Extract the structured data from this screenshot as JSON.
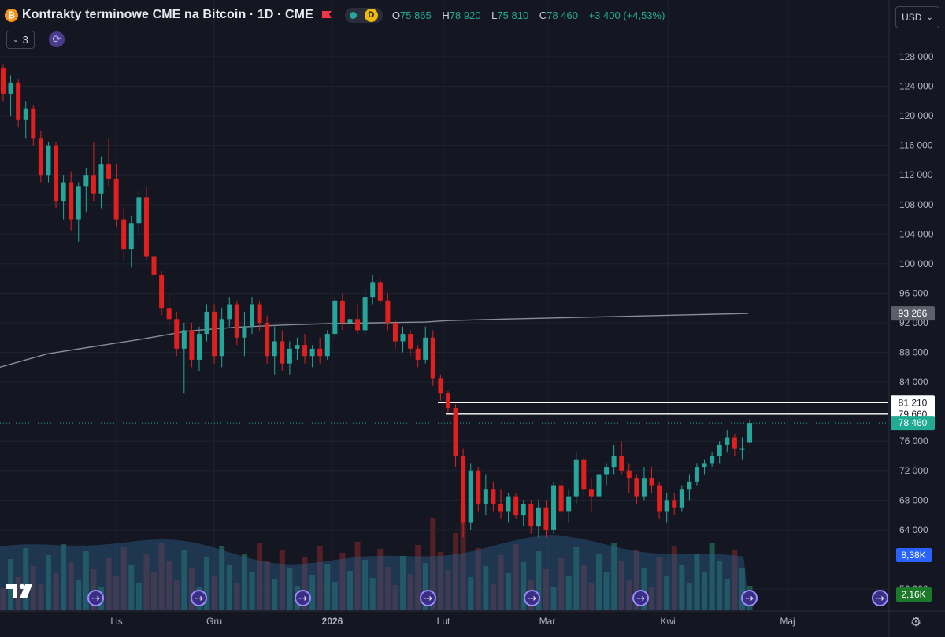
{
  "legend": {
    "coin_icon": "bitcoin-icon",
    "coin_symbol": "₿",
    "title": "Kontrakty terminowe CME na Bitcoin · 1D · CME",
    "status_letter": "D",
    "open_label": "O",
    "open": "75 865",
    "high_label": "H",
    "high": "78 920",
    "low_label": "L",
    "low": "75 810",
    "close_label": "C",
    "close": "78 460",
    "change": "+3 400 (+4,53%)"
  },
  "toolbar": {
    "indicators_count": "3",
    "currency": "USD"
  },
  "colors": {
    "up": "#26a69a",
    "down": "#e0201f",
    "background": "#141722",
    "grid": "#1f2330",
    "ma": "#8a8d96",
    "volume": "#2a5d8a"
  },
  "chart_data": {
    "type": "candlestick",
    "title": "Kontrakty terminowe CME na Bitcoin",
    "interval": "1D",
    "exchange": "CME",
    "x_tick_labels": [
      "Lis",
      "Gru",
      "2026",
      "Lut",
      "Mar",
      "Kwi",
      "Maj"
    ],
    "y_tick_labels": [
      "128 000",
      "124 000",
      "120 000",
      "116 000",
      "112 000",
      "108 000",
      "104 000",
      "100 000",
      "96 000",
      "92 000",
      "88 000",
      "84 000",
      "76 000",
      "72 000",
      "68 000",
      "64 000",
      "56 000"
    ],
    "y_ticks": [
      128000,
      124000,
      120000,
      116000,
      112000,
      108000,
      104000,
      100000,
      96000,
      92000,
      88000,
      84000,
      76000,
      72000,
      68000,
      64000,
      56000
    ],
    "ylim": [
      54000,
      130000
    ],
    "grid": true,
    "candles": [
      [
        126500,
        127000,
        122000,
        123000
      ],
      [
        123000,
        125500,
        120000,
        124500
      ],
      [
        124500,
        125000,
        118500,
        119500
      ],
      [
        119500,
        122000,
        117000,
        121000
      ],
      [
        121000,
        121500,
        116000,
        117000
      ],
      [
        117000,
        118000,
        111000,
        112000
      ],
      [
        112000,
        116500,
        111000,
        116000
      ],
      [
        116000,
        116500,
        107500,
        108500
      ],
      [
        108500,
        112000,
        106000,
        111000
      ],
      [
        111000,
        112500,
        104500,
        106000
      ],
      [
        106000,
        111000,
        103000,
        110500
      ],
      [
        110500,
        113000,
        107000,
        112000
      ],
      [
        112000,
        116500,
        108500,
        109500
      ],
      [
        109500,
        114500,
        107500,
        113500
      ],
      [
        113500,
        117000,
        110500,
        111500
      ],
      [
        111500,
        113500,
        105000,
        106000
      ],
      [
        106000,
        107500,
        100500,
        102000
      ],
      [
        102000,
        106500,
        99500,
        105500
      ],
      [
        105500,
        110000,
        104000,
        109000
      ],
      [
        109000,
        110500,
        100500,
        101000
      ],
      [
        101000,
        104500,
        97000,
        98500
      ],
      [
        98500,
        99000,
        93000,
        94000
      ],
      [
        94000,
        96000,
        91500,
        92500
      ],
      [
        92500,
        93500,
        87500,
        88500
      ],
      [
        88500,
        92000,
        82500,
        91000
      ],
      [
        91000,
        92000,
        86000,
        87000
      ],
      [
        87000,
        91500,
        85500,
        90500
      ],
      [
        90500,
        94500,
        89500,
        93500
      ],
      [
        93500,
        94500,
        86500,
        87500
      ],
      [
        87500,
        94000,
        86000,
        92500
      ],
      [
        92500,
        95500,
        91500,
        94500
      ],
      [
        94500,
        95000,
        89000,
        90000
      ],
      [
        90000,
        93500,
        87500,
        91500
      ],
      [
        91500,
        95500,
        90500,
        94500
      ],
      [
        94500,
        95000,
        91000,
        92000
      ],
      [
        92000,
        93000,
        86500,
        87500
      ],
      [
        87500,
        91500,
        85000,
        89500
      ],
      [
        89500,
        91000,
        85500,
        86500
      ],
      [
        86500,
        89500,
        85000,
        88500
      ],
      [
        88500,
        90000,
        87000,
        89000
      ],
      [
        89000,
        90500,
        86500,
        87500
      ],
      [
        87500,
        89000,
        86000,
        88500
      ],
      [
        88500,
        90000,
        86500,
        87500
      ],
      [
        87500,
        91000,
        87000,
        90500
      ],
      [
        90500,
        95500,
        90000,
        95000
      ],
      [
        95000,
        96000,
        91000,
        92000
      ],
      [
        92000,
        93500,
        90500,
        92500
      ],
      [
        92500,
        94500,
        90500,
        91000
      ],
      [
        91000,
        96500,
        90000,
        95500
      ],
      [
        95500,
        98500,
        94500,
        97500
      ],
      [
        97500,
        98000,
        94500,
        95000
      ],
      [
        95000,
        96000,
        91000,
        92000
      ],
      [
        92000,
        92500,
        88500,
        89500
      ],
      [
        89500,
        91500,
        88000,
        90500
      ],
      [
        90500,
        91000,
        87500,
        88500
      ],
      [
        88500,
        89000,
        86000,
        87000
      ],
      [
        87000,
        91500,
        86500,
        90000
      ],
      [
        90000,
        91000,
        83500,
        84500
      ],
      [
        84500,
        85000,
        81500,
        82500
      ],
      [
        82500,
        82800,
        79800,
        80500
      ],
      [
        80500,
        81000,
        72500,
        74000
      ],
      [
        74000,
        75000,
        63000,
        65000
      ],
      [
        65000,
        73000,
        64000,
        72000
      ],
      [
        72000,
        72500,
        66500,
        67500
      ],
      [
        67500,
        71500,
        66000,
        69500
      ],
      [
        69500,
        70500,
        66500,
        67500
      ],
      [
        67500,
        69500,
        65500,
        66500
      ],
      [
        66500,
        69000,
        65000,
        68500
      ],
      [
        68500,
        69000,
        65500,
        66000
      ],
      [
        66000,
        68000,
        64500,
        67500
      ],
      [
        67500,
        68000,
        63500,
        64500
      ],
      [
        64500,
        68000,
        63000,
        67000
      ],
      [
        67000,
        68000,
        63000,
        64000
      ],
      [
        64000,
        70500,
        63500,
        70000
      ],
      [
        70000,
        71000,
        65500,
        66500
      ],
      [
        66500,
        69500,
        65000,
        68500
      ],
      [
        68500,
        74500,
        67500,
        73500
      ],
      [
        73500,
        74000,
        68500,
        69500
      ],
      [
        69500,
        71000,
        66500,
        68500
      ],
      [
        68500,
        72500,
        68000,
        71500
      ],
      [
        71500,
        73000,
        70000,
        72500
      ],
      [
        72500,
        75500,
        71500,
        74000
      ],
      [
        74000,
        76000,
        71500,
        72000
      ],
      [
        72000,
        73000,
        69000,
        71000
      ],
      [
        71000,
        71500,
        67500,
        68500
      ],
      [
        68500,
        72500,
        68000,
        71000
      ],
      [
        71000,
        72500,
        69000,
        70000
      ],
      [
        70000,
        70500,
        65500,
        66500
      ],
      [
        66500,
        69000,
        65000,
        68000
      ],
      [
        68000,
        69000,
        66000,
        67000
      ],
      [
        67000,
        70000,
        66500,
        69500
      ],
      [
        69500,
        71500,
        68000,
        70500
      ],
      [
        70500,
        73000,
        70000,
        72500
      ],
      [
        72500,
        73500,
        71500,
        73000
      ],
      [
        73000,
        74500,
        72500,
        74000
      ],
      [
        74000,
        76000,
        73000,
        75500
      ],
      [
        75500,
        77500,
        74500,
        76500
      ],
      [
        76500,
        77000,
        74000,
        75000
      ],
      [
        75000,
        76500,
        73500,
        75000
      ],
      [
        75865,
        78920,
        75810,
        78460
      ]
    ],
    "ma_value": 93266,
    "ma_points": [
      [
        0,
        86000
      ],
      [
        60,
        87800
      ],
      [
        120,
        88800
      ],
      [
        180,
        89800
      ],
      [
        240,
        90900
      ],
      [
        300,
        91400
      ],
      [
        360,
        91700
      ],
      [
        420,
        91900
      ],
      [
        480,
        92000
      ],
      [
        540,
        92100
      ],
      [
        570,
        92300
      ],
      [
        640,
        92500
      ],
      [
        720,
        92700
      ],
      [
        800,
        92900
      ],
      [
        880,
        93100
      ],
      [
        950,
        93266
      ]
    ],
    "volume_labels": {
      "average": "8,38K",
      "last": "2,16K"
    },
    "price_lines": [
      {
        "label": "81 210",
        "value": 81210
      },
      {
        "label": "79 660",
        "value": 79660
      }
    ],
    "current_price_label": "78 460",
    "ma_label": "93 266"
  },
  "events_icon": "dividend-event-icon",
  "settings_icon": "settings-gear-icon"
}
